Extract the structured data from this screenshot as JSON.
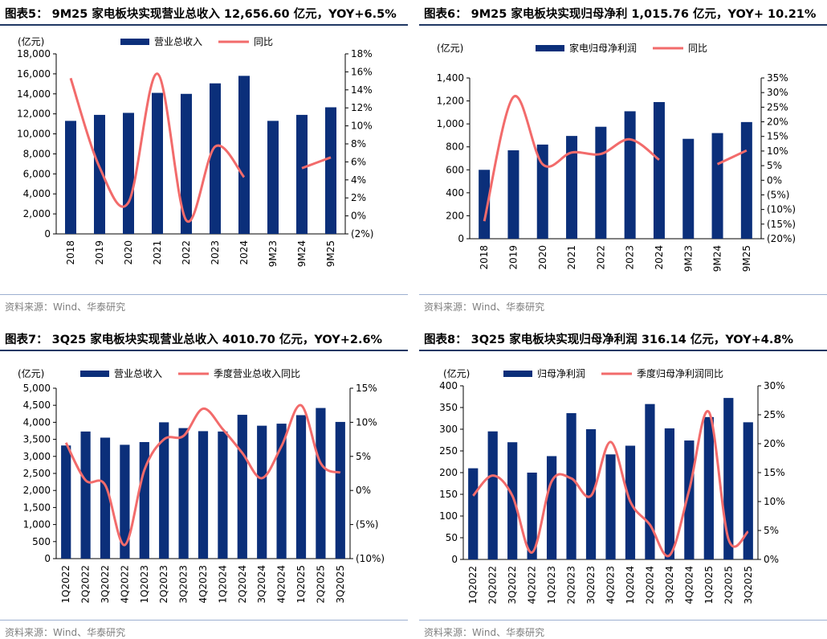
{
  "colors": {
    "bar": "#0b2f7a",
    "line": "#f26b6b",
    "title_rule": "#1f3864",
    "source": "#7f7f7f"
  },
  "panels": [
    {
      "title": "图表5： 9M25 家电板块实现营业总收入 12,656.60 亿元，YOY+6.5%",
      "unit": "(亿元)",
      "source": "资料来源：Wind、华泰研究",
      "chart_data": {
        "type": "bar+line",
        "categories": [
          "2018",
          "2019",
          "2020",
          "2021",
          "2022",
          "2023",
          "2024",
          "9M23",
          "9M24",
          "9M25"
        ],
        "series": [
          {
            "name": "营业总收入",
            "kind": "bar",
            "axis": "left",
            "values": [
              11300,
              11900,
              12100,
              14100,
              14000,
              15050,
              15800,
              11300,
              11900,
              12657
            ]
          },
          {
            "name": "同比",
            "kind": "line",
            "axis": "right",
            "values": [
              15.3,
              5.4,
              1.5,
              15.8,
              -0.5,
              7.7,
              4.3,
              null,
              5.3,
              6.5
            ]
          }
        ],
        "y_left": {
          "min": 0,
          "max": 18000,
          "ticks": [
            0,
            2000,
            4000,
            6000,
            8000,
            10000,
            12000,
            14000,
            16000,
            18000
          ],
          "labels": [
            "0",
            "2,000",
            "4,000",
            "6,000",
            "8,000",
            "10,000",
            "12,000",
            "14,000",
            "16,000",
            "18,000"
          ]
        },
        "y_right": {
          "min": -2,
          "max": 18,
          "ticks": [
            -2,
            0,
            2,
            4,
            6,
            8,
            10,
            12,
            14,
            16,
            18
          ],
          "labels": [
            "(2%)",
            "0%",
            "2%",
            "4%",
            "6%",
            "8%",
            "10%",
            "12%",
            "14%",
            "16%",
            "18%"
          ]
        },
        "legend_position": "top-center",
        "grid": false
      }
    },
    {
      "title": "图表6： 9M25 家电板块实现归母净利 1,015.76 亿元，YOY+ 10.21%",
      "unit": "(亿元)",
      "source": "资料来源：Wind、华泰研究",
      "chart_data": {
        "type": "bar+line",
        "categories": [
          "2018",
          "2019",
          "2020",
          "2021",
          "2022",
          "2023",
          "2024",
          "9M23",
          "9M24",
          "9M25"
        ],
        "series": [
          {
            "name": "家电归母净利润",
            "kind": "bar",
            "axis": "left",
            "values": [
              600,
              770,
              820,
              895,
              975,
              1110,
              1190,
              870,
              920,
              1016
            ]
          },
          {
            "name": "同比",
            "kind": "line",
            "axis": "right",
            "values": [
              -14,
              28.5,
              5.5,
              9.5,
              9,
              14,
              7,
              null,
              5.5,
              10.2
            ]
          }
        ],
        "y_left": {
          "min": 0,
          "max": 1400,
          "ticks": [
            0,
            200,
            400,
            600,
            800,
            1000,
            1200,
            1400
          ],
          "labels": [
            "0",
            "200",
            "400",
            "600",
            "800",
            "1,000",
            "1,200",
            "1,400"
          ]
        },
        "y_right": {
          "min": -20,
          "max": 35,
          "ticks": [
            -20,
            -15,
            -10,
            -5,
            0,
            5,
            10,
            15,
            20,
            25,
            30,
            35
          ],
          "labels": [
            "(20%)",
            "(15%)",
            "(10%)",
            "(5%)",
            "0%",
            "5%",
            "10%",
            "15%",
            "20%",
            "25%",
            "30%",
            "35%"
          ]
        },
        "legend_position": "top-center",
        "grid": false
      }
    },
    {
      "title": "图表7： 3Q25 家电板块实现营业总收入 4010.70 亿元，YOY+2.6%",
      "unit": "(亿元)",
      "source": "资料来源：Wind、华泰研究",
      "chart_data": {
        "type": "bar+line",
        "categories": [
          "1Q2022",
          "2Q2022",
          "3Q2022",
          "4Q2022",
          "1Q2023",
          "2Q2023",
          "3Q2023",
          "4Q2023",
          "1Q2024",
          "2Q2024",
          "3Q2024",
          "4Q2024",
          "1Q2025",
          "2Q2025",
          "3Q2025"
        ],
        "series": [
          {
            "name": "营业总收入",
            "kind": "bar",
            "axis": "left",
            "values": [
              3320,
              3730,
              3550,
              3340,
              3420,
              4000,
              3830,
              3740,
              3730,
              4220,
              3900,
              3960,
              4210,
              4420,
              4011
            ]
          },
          {
            "name": "季度营业总收入同比",
            "kind": "line",
            "axis": "right",
            "values": [
              7,
              1.5,
              0.8,
              -8,
              3,
              7.5,
              8,
              12,
              9,
              5.5,
              1.8,
              6.5,
              12.5,
              4,
              2.6
            ]
          }
        ],
        "y_left": {
          "min": 0,
          "max": 5000,
          "ticks": [
            0,
            500,
            1000,
            1500,
            2000,
            2500,
            3000,
            3500,
            4000,
            4500,
            5000
          ],
          "labels": [
            "0",
            "500",
            "1,000",
            "1,500",
            "2,000",
            "2,500",
            "3,000",
            "3,500",
            "4,000",
            "4,500",
            "5,000"
          ]
        },
        "y_right": {
          "min": -10,
          "max": 15,
          "ticks": [
            -10,
            -5,
            0,
            5,
            10,
            15
          ],
          "labels": [
            "(10%)",
            "(5%)",
            "0%",
            "5%",
            "10%",
            "15%"
          ]
        },
        "legend_position": "top-center",
        "grid": false
      }
    },
    {
      "title": "图表8： 3Q25 家电板块实现归母净利润 316.14 亿元，YOY+4.8%",
      "unit": "(亿元)",
      "source": "资料来源：Wind、华泰研究",
      "chart_data": {
        "type": "bar+line",
        "categories": [
          "1Q2022",
          "2Q2022",
          "3Q2022",
          "4Q2022",
          "1Q2023",
          "2Q2023",
          "3Q2023",
          "4Q2023",
          "1Q2024",
          "2Q2024",
          "3Q2024",
          "4Q2024",
          "1Q2025",
          "2Q2025",
          "3Q2025"
        ],
        "series": [
          {
            "name": "归母净利润",
            "kind": "bar",
            "axis": "left",
            "values": [
              210,
              295,
              270,
              200,
              238,
              337,
              300,
              242,
              262,
              358,
              302,
              274,
              328,
              372,
              316
            ]
          },
          {
            "name": "季度归母净利润同比",
            "kind": "line",
            "axis": "right",
            "values": [
              11,
              14.5,
              11,
              1.2,
              13.5,
              14,
              11,
              20.3,
              10,
              6,
              0.7,
              12,
              25.5,
              3.5,
              4.8
            ]
          }
        ],
        "y_left": {
          "min": 0,
          "max": 400,
          "ticks": [
            0,
            50,
            100,
            150,
            200,
            250,
            300,
            350,
            400
          ],
          "labels": [
            "0",
            "50",
            "100",
            "150",
            "200",
            "250",
            "300",
            "350",
            "400"
          ]
        },
        "y_right": {
          "min": 0,
          "max": 30,
          "ticks": [
            0,
            5,
            10,
            15,
            20,
            25,
            30
          ],
          "labels": [
            "0%",
            "5%",
            "10%",
            "15%",
            "20%",
            "25%",
            "30%"
          ]
        },
        "legend_position": "top-center",
        "grid": false
      }
    }
  ]
}
